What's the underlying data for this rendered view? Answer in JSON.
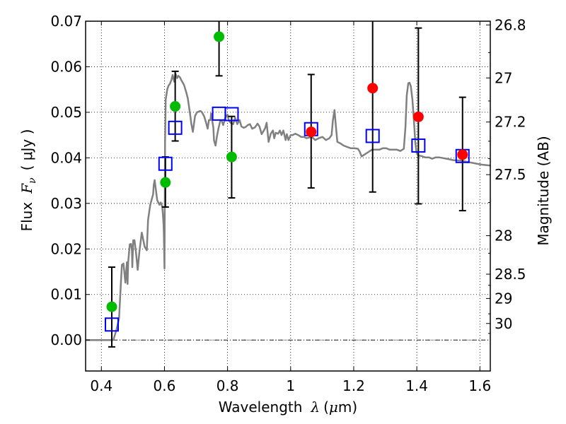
{
  "chart_data": {
    "type": "scatter",
    "title": "",
    "xlabel": "Wavelength  λ (μm)",
    "ylabel": "Flux  Fν  ( μJy )",
    "ylabel_parts": {
      "prefix": "Flux",
      "symbol": "F",
      "subscript": "ν",
      "unit": "( μJy )"
    },
    "xlabel_parts": {
      "prefix": "Wavelength",
      "symbol": "λ",
      "unit_open": "(",
      "unit_mu": "μ",
      "unit_rest": "m)"
    },
    "y2label": "Magnitude (AB)",
    "xlim": [
      0.35,
      1.633
    ],
    "ylim": [
      -0.0068,
      0.07
    ],
    "grid": true,
    "legend": "none",
    "x_ticks": [
      0.4,
      0.6,
      0.8,
      1.0,
      1.2,
      1.4,
      1.6
    ],
    "x_tick_labels": [
      "0.4",
      "0.6",
      "0.8",
      "1",
      "1.2",
      "1.4",
      "1.6"
    ],
    "y_ticks": [
      0.0,
      0.01,
      0.02,
      0.03,
      0.04,
      0.05,
      0.06,
      0.07
    ],
    "y_tick_labels": [
      "0.00",
      "0.01",
      "0.02",
      "0.03",
      "0.04",
      "0.05",
      "0.06",
      "0.07"
    ],
    "y2_ticks_mag": [
      26.8,
      27,
      27.2,
      27.5,
      28,
      28.5,
      29,
      30
    ],
    "y2_tick_labels": [
      "26.8",
      "27",
      "27.2",
      "27.5",
      "28",
      "28.5",
      "29",
      "30"
    ],
    "y2_zero_point": 23.9,
    "series": [
      {
        "name": "model spectrum",
        "kind": "line",
        "color": "#808080",
        "x": [
          0.35,
          0.438,
          0.448,
          0.456,
          0.462,
          0.465,
          0.47,
          0.474,
          0.476,
          0.481,
          0.483,
          0.485,
          0.49,
          0.494,
          0.497,
          0.498,
          0.501,
          0.505,
          0.51,
          0.515,
          0.521,
          0.528,
          0.537,
          0.544,
          0.548,
          0.555,
          0.564,
          0.566,
          0.569,
          0.573,
          0.577,
          0.584,
          0.588,
          0.593,
          0.595,
          0.597,
          0.598,
          0.6,
          0.602,
          0.604,
          0.609,
          0.613,
          0.617,
          0.622,
          0.626,
          0.631,
          0.635,
          0.64,
          0.644,
          0.649,
          0.653,
          0.658,
          0.662,
          0.669,
          0.674,
          0.681,
          0.685,
          0.69,
          0.697,
          0.703,
          0.71,
          0.714,
          0.719,
          0.726,
          0.732,
          0.737,
          0.741,
          0.746,
          0.748,
          0.755,
          0.757,
          0.762,
          0.766,
          0.771,
          0.777,
          0.782,
          0.786,
          0.793,
          0.8,
          0.804,
          0.811,
          0.818,
          0.824,
          0.831,
          0.838,
          0.844,
          0.851,
          0.858,
          0.864,
          0.871,
          0.878,
          0.887,
          0.895,
          0.901,
          0.908,
          0.915,
          0.919,
          0.924,
          0.93,
          0.937,
          0.944,
          0.948,
          0.953,
          0.96,
          0.966,
          0.971,
          0.977,
          0.984,
          0.988,
          0.993,
          1.0,
          1.006,
          1.015,
          1.024,
          1.033,
          1.042,
          1.051,
          1.067,
          1.078,
          1.089,
          1.101,
          1.112,
          1.123,
          1.13,
          1.134,
          1.139,
          1.143,
          1.148,
          1.157,
          1.168,
          1.179,
          1.191,
          1.202,
          1.213,
          1.218,
          1.225,
          1.236,
          1.247,
          1.258,
          1.27,
          1.281,
          1.292,
          1.303,
          1.314,
          1.326,
          1.337,
          1.348,
          1.359,
          1.364,
          1.368,
          1.373,
          1.377,
          1.381,
          1.386,
          1.391,
          1.395,
          1.399,
          1.404,
          1.415,
          1.426,
          1.438,
          1.449,
          1.46,
          1.471,
          1.494,
          1.516,
          1.539,
          1.561,
          1.584,
          1.606,
          1.633
        ],
        "y": [
          0.0,
          0.0,
          0.0023,
          0.0048,
          0.0126,
          0.0165,
          0.0168,
          0.014,
          0.0126,
          0.0171,
          0.0123,
          0.0171,
          0.021,
          0.0211,
          0.0196,
          0.016,
          0.0219,
          0.0219,
          0.0191,
          0.0154,
          0.0196,
          0.0236,
          0.0205,
          0.0197,
          0.0264,
          0.0297,
          0.032,
          0.034,
          0.0351,
          0.0329,
          0.0307,
          0.0297,
          0.0302,
          0.0293,
          0.0277,
          0.0256,
          0.0233,
          0.0157,
          0.0435,
          0.0528,
          0.0551,
          0.0559,
          0.0562,
          0.0571,
          0.0582,
          0.0567,
          0.0585,
          0.0575,
          0.058,
          0.0577,
          0.0571,
          0.0565,
          0.056,
          0.0544,
          0.0531,
          0.0497,
          0.0475,
          0.0457,
          0.0492,
          0.05,
          0.0502,
          0.0503,
          0.05,
          0.0491,
          0.0477,
          0.0464,
          0.0483,
          0.0483,
          0.0497,
          0.0466,
          0.0438,
          0.0427,
          0.0446,
          0.0464,
          0.0482,
          0.0481,
          0.0472,
          0.0488,
          0.0495,
          0.0482,
          0.0476,
          0.0474,
          0.0488,
          0.0474,
          0.0483,
          0.0469,
          0.0466,
          0.0468,
          0.0472,
          0.0474,
          0.0464,
          0.0467,
          0.0475,
          0.0469,
          0.0452,
          0.046,
          0.0465,
          0.0477,
          0.0435,
          0.0453,
          0.046,
          0.0443,
          0.0455,
          0.0453,
          0.046,
          0.045,
          0.046,
          0.0439,
          0.0452,
          0.0439,
          0.045,
          0.045,
          0.0453,
          0.045,
          0.0446,
          0.0446,
          0.0443,
          0.0446,
          0.0439,
          0.0443,
          0.0446,
          0.0439,
          0.0443,
          0.045,
          0.0482,
          0.0505,
          0.0474,
          0.0435,
          0.0432,
          0.0427,
          0.0424,
          0.0421,
          0.0421,
          0.042,
          0.0415,
          0.0403,
          0.0408,
          0.0413,
          0.0418,
          0.0418,
          0.0418,
          0.0421,
          0.0421,
          0.0418,
          0.0418,
          0.0418,
          0.0415,
          0.042,
          0.0468,
          0.0537,
          0.0564,
          0.0565,
          0.0557,
          0.0528,
          0.0481,
          0.0435,
          0.0412,
          0.0405,
          0.0404,
          0.0401,
          0.0401,
          0.0398,
          0.0401,
          0.0401,
          0.0398,
          0.0395,
          0.0394,
          0.0391,
          0.0388,
          0.0385,
          0.0383
        ]
      },
      {
        "name": "observed (green)",
        "kind": "points",
        "color": "#00bb00",
        "x": [
          0.433,
          0.603,
          0.634,
          0.773,
          0.813
        ],
        "y": [
          0.0073,
          0.0346,
          0.0513,
          0.0666,
          0.0402
        ],
        "err_low": [
          -0.0015,
          0.0292,
          0.0437,
          0.058,
          0.0312
        ],
        "err_high": [
          0.016,
          0.0402,
          0.059,
          0.074,
          0.0491
        ]
      },
      {
        "name": "observed (red)",
        "kind": "points",
        "color": "#ff0000",
        "x": [
          1.065,
          1.26,
          1.405,
          1.545
        ],
        "y": [
          0.0457,
          0.0553,
          0.049,
          0.0407
        ],
        "err_low": [
          0.0334,
          0.0325,
          0.0299,
          0.0284
        ],
        "err_high": [
          0.0583,
          0.08,
          0.0685,
          0.0533
        ]
      },
      {
        "name": "model photometry",
        "kind": "squares",
        "color": "#0000ff",
        "x": [
          0.433,
          0.603,
          0.634,
          0.773,
          0.813,
          1.065,
          1.26,
          1.405,
          1.545
        ],
        "y": [
          0.0034,
          0.0387,
          0.0466,
          0.0497,
          0.0496,
          0.0463,
          0.0448,
          0.0427,
          0.0404
        ]
      }
    ]
  }
}
